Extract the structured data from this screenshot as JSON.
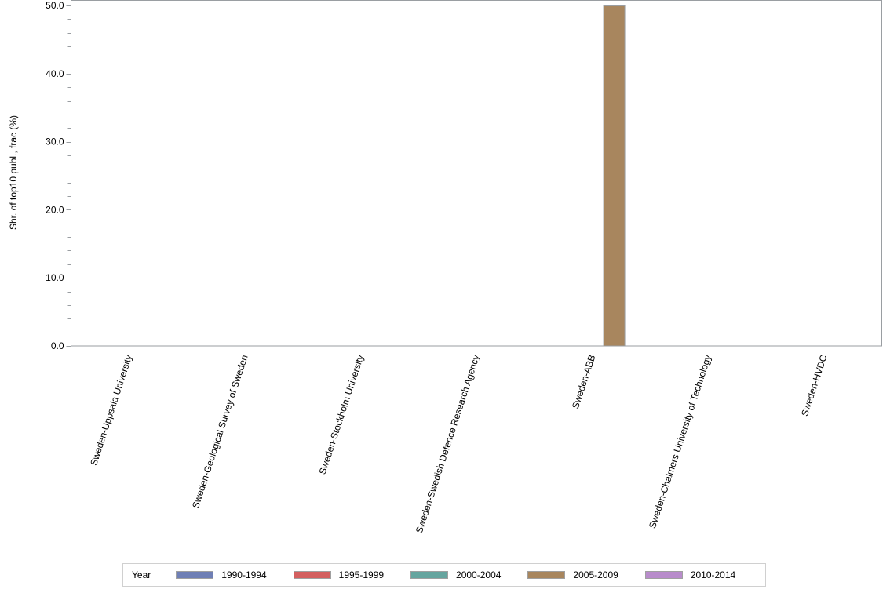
{
  "chart_data": {
    "type": "bar",
    "title": "",
    "xlabel": "",
    "ylabel": "Shr. of top10 publ., frac (%)",
    "ylim": [
      0,
      50
    ],
    "yticks": [
      "0.0",
      "10.0",
      "20.0",
      "30.0",
      "40.0",
      "50.0"
    ],
    "grid": false,
    "legend_position": "bottom",
    "legend_title": "Year",
    "categories": [
      "Sweden-Uppsala University",
      "Sweden-Geological Survey of Sweden",
      "Sweden-Stockholm University",
      "Sweden-Swedish Defence Research Agency",
      "Sweden-ABB",
      "Sweden-Chalmers University of Technology",
      "Sweden-HVDC"
    ],
    "series": [
      {
        "name": "1990-1994",
        "color": "#6f7fb5",
        "values": [
          0,
          0,
          0,
          0,
          0,
          0,
          0
        ]
      },
      {
        "name": "1995-1999",
        "color": "#d35f5f",
        "values": [
          0,
          0,
          0,
          0,
          0,
          0,
          0
        ]
      },
      {
        "name": "2000-2004",
        "color": "#66a59f",
        "values": [
          0,
          0,
          0,
          0,
          0,
          0,
          0
        ]
      },
      {
        "name": "2005-2009",
        "color": "#a8865e",
        "values": [
          0,
          0,
          0,
          0,
          50.0,
          0,
          0
        ]
      },
      {
        "name": "2010-2014",
        "color": "#b88ccb",
        "values": [
          0,
          0,
          0,
          0,
          0,
          0,
          0
        ]
      }
    ]
  },
  "legend": {
    "title": "Year",
    "items": [
      {
        "label": "1990-1994",
        "color": "#6f7fb5"
      },
      {
        "label": "1995-1999",
        "color": "#d35f5f"
      },
      {
        "label": "2000-2004",
        "color": "#66a59f"
      },
      {
        "label": "2005-2009",
        "color": "#a8865e"
      },
      {
        "label": "2010-2014",
        "color": "#b88ccb"
      }
    ]
  }
}
